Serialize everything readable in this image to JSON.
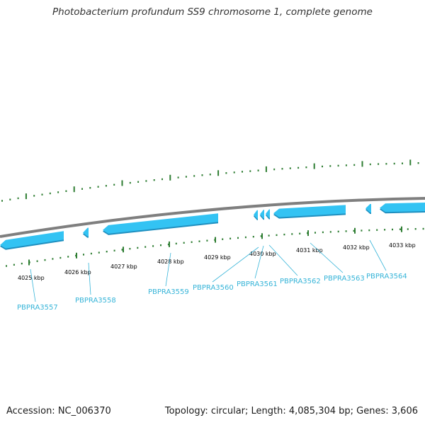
{
  "title": "Photobacterium profundum SS9 chromosome 1, complete genome",
  "footer": {
    "accession": "Accession: NC_006370",
    "summary": "Topology: circular; Length: 4,085,304 bp; Genes: 3,606"
  },
  "colors": {
    "backbone": "#7f7f7f",
    "gene_fill": "#33c3f3",
    "gene_label": "#36b4d8",
    "tick": "#2e7d32"
  },
  "kbp_labels": [
    "4025 kbp",
    "4026 kbp",
    "4027 kbp",
    "4028 kbp",
    "4029 kbp",
    "4030 kbp",
    "4031 kbp",
    "4032 kbp",
    "4033 kbp"
  ],
  "genes": [
    {
      "label": "PBPRA3557"
    },
    {
      "label": "PBPRA3558"
    },
    {
      "label": "PBPRA3559"
    },
    {
      "label": "PBPRA3560"
    },
    {
      "label": "PBPRA3561"
    },
    {
      "label": "PBPRA3562"
    },
    {
      "label": "PBPRA3563"
    },
    {
      "label": "PBPRA3564"
    }
  ]
}
